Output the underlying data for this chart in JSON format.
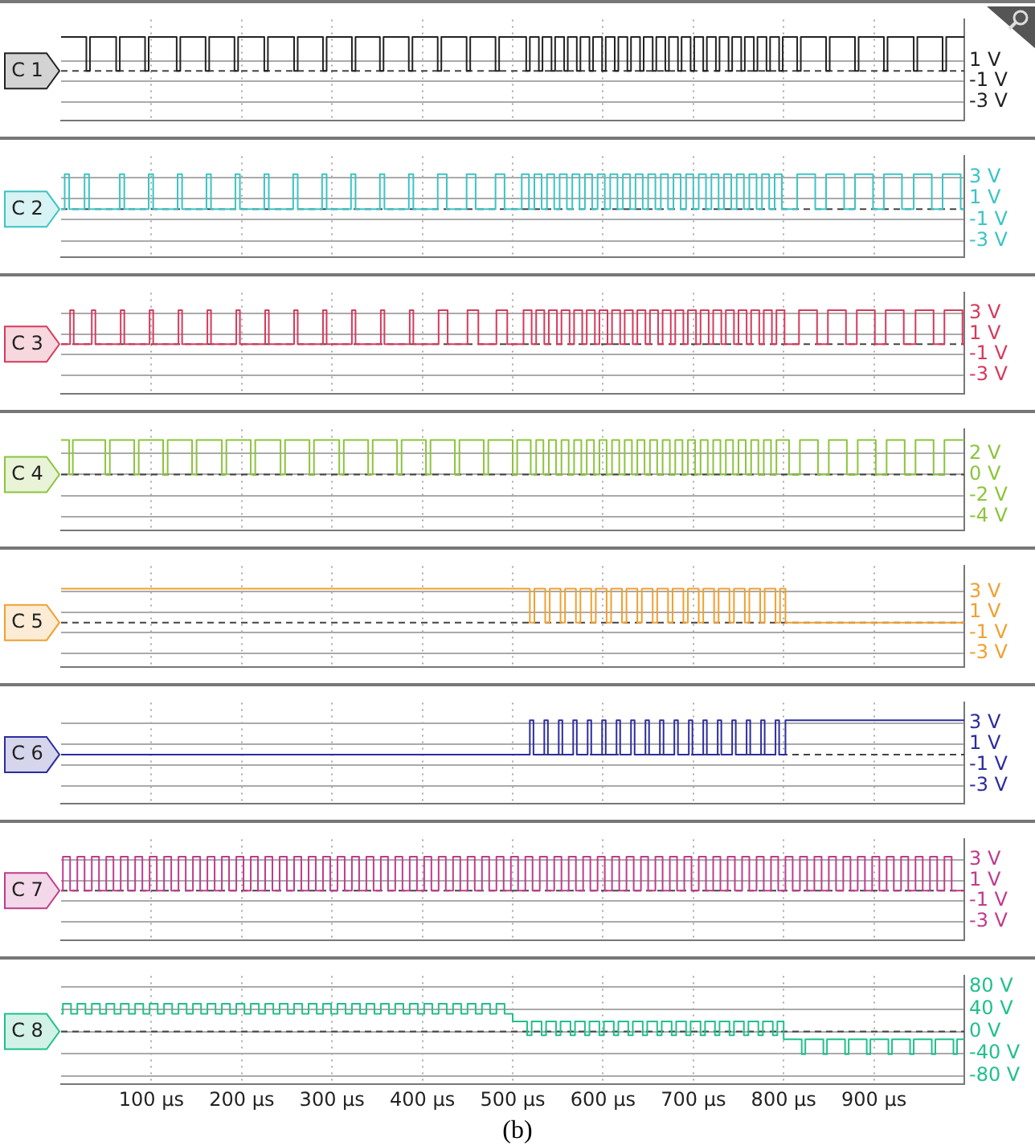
{
  "chart_data": [
    {
      "type": "step",
      "xlim": [
        0,
        1000
      ],
      "xticks": [
        100,
        200,
        300,
        400,
        500,
        600,
        700,
        800,
        900
      ],
      "ylim": [
        -4.8,
        5
      ],
      "yticks": [
        {
          "value": 1,
          "label": "1 V"
        },
        {
          "value": -1,
          "label": "-1 V"
        },
        {
          "value": -3,
          "label": "-3 V"
        }
      ],
      "tick_labels": "y",
      "grid": true,
      "legend": false,
      "marker": "none",
      "line_style": "solid",
      "ref_lines": [
        {
          "axis": "y",
          "value": 0,
          "line_style": "dashed"
        }
      ],
      "series": [
        {
          "name": "C 1",
          "color": "#222222",
          "x": [
            0,
            28,
            32,
            61,
            65,
            93,
            97,
            128,
            132,
            160,
            164,
            192,
            196,
            225,
            229,
            258,
            262,
            290,
            294,
            322,
            326,
            353,
            357,
            385,
            389,
            417,
            421,
            449,
            453,
            481,
            485,
            515,
            519,
            529,
            533,
            543,
            547,
            557,
            561,
            571,
            575,
            585,
            589,
            599,
            603,
            613,
            617,
            627,
            631,
            641,
            645,
            655,
            659,
            669,
            673,
            683,
            687,
            697,
            701,
            711,
            715,
            725,
            729,
            739,
            743,
            753,
            757,
            767,
            771,
            781,
            785,
            795,
            799,
            815,
            819,
            847,
            851,
            879,
            883,
            911,
            915,
            944,
            948,
            976,
            980,
            1000
          ],
          "values": [
            3.3,
            0,
            3.3,
            0,
            3.3,
            0,
            3.3,
            0,
            3.3,
            0,
            3.3,
            0,
            3.3,
            0,
            3.3,
            0,
            3.3,
            0,
            3.3,
            0,
            3.3,
            0,
            3.3,
            0,
            3.3,
            0,
            3.3,
            0,
            3.3,
            0,
            3.3,
            0,
            3.3,
            0,
            3.3,
            0,
            3.3,
            0,
            3.3,
            0,
            3.3,
            0,
            3.3,
            0,
            3.3,
            0,
            3.3,
            0,
            3.3,
            0,
            3.3,
            0,
            3.3,
            0,
            3.3,
            0,
            3.3,
            0,
            3.3,
            0,
            3.3,
            0,
            3.3,
            0,
            3.3,
            0,
            3.3,
            0,
            3.3,
            0,
            3.3,
            0,
            3.3,
            0,
            3.3,
            0,
            3.3,
            0,
            3.3,
            0,
            3.3,
            0,
            3.3,
            0,
            3.3,
            3.3
          ]
        }
      ]
    },
    {
      "type": "step",
      "xlim": [
        0,
        1000
      ],
      "xticks": [
        100,
        200,
        300,
        400,
        500,
        600,
        700,
        800,
        900
      ],
      "ylim": [
        -4.5,
        5
      ],
      "yticks": [
        {
          "value": 3,
          "label": "3 V"
        },
        {
          "value": 1,
          "label": "1 V"
        },
        {
          "value": -1,
          "label": "-1 V"
        },
        {
          "value": -3,
          "label": "-3 V"
        }
      ],
      "tick_labels": "y",
      "grid": true,
      "legend": false,
      "marker": "none",
      "line_style": "solid",
      "ref_lines": [
        {
          "axis": "y",
          "value": 0,
          "line_style": "dashed"
        }
      ],
      "series": [
        {
          "name": "C 2",
          "color": "#3cc4c4",
          "x": [
            0,
            4,
            9,
            26,
            31,
            65,
            70,
            97,
            102,
            129,
            134,
            161,
            166,
            193,
            198,
            225,
            230,
            257,
            262,
            289,
            294,
            321,
            326,
            353,
            358,
            385,
            390,
            417,
            427,
            449,
            459,
            481,
            491,
            510,
            518,
            524,
            532,
            538,
            546,
            552,
            560,
            566,
            574,
            580,
            588,
            594,
            602,
            608,
            616,
            622,
            630,
            636,
            644,
            650,
            658,
            664,
            672,
            678,
            686,
            692,
            700,
            706,
            714,
            720,
            728,
            734,
            742,
            748,
            756,
            762,
            770,
            776,
            784,
            790,
            798,
            815,
            835,
            847,
            867,
            879,
            899,
            911,
            931,
            944,
            964,
            976,
            996,
            1000
          ],
          "values": [
            0,
            3.3,
            0,
            3.3,
            0,
            3.3,
            0,
            3.3,
            0,
            3.3,
            0,
            3.3,
            0,
            3.3,
            0,
            3.3,
            0,
            3.3,
            0,
            3.3,
            0,
            3.3,
            0,
            3.3,
            0,
            3.3,
            0,
            3.3,
            0,
            3.3,
            0,
            3.3,
            0,
            3.3,
            0,
            3.3,
            0,
            3.3,
            0,
            3.3,
            0,
            3.3,
            0,
            3.3,
            0,
            3.3,
            0,
            3.3,
            0,
            3.3,
            0,
            3.3,
            0,
            3.3,
            0,
            3.3,
            0,
            3.3,
            0,
            3.3,
            0,
            3.3,
            0,
            3.3,
            0,
            3.3,
            0,
            3.3,
            0,
            3.3,
            0,
            3.3,
            0,
            3.3,
            0,
            3.3,
            0,
            3.3,
            0,
            3.3,
            0,
            3.3,
            0,
            3.3,
            0,
            3.3,
            0,
            0
          ]
        }
      ]
    },
    {
      "type": "step",
      "xlim": [
        0,
        1000
      ],
      "xticks": [
        100,
        200,
        300,
        400,
        500,
        600,
        700,
        800,
        900
      ],
      "ylim": [
        -4.8,
        5
      ],
      "yticks": [
        {
          "value": 3,
          "label": "3 V"
        },
        {
          "value": 1,
          "label": "1 V"
        },
        {
          "value": -1,
          "label": "-1 V"
        },
        {
          "value": -3,
          "label": "-3 V"
        }
      ],
      "tick_labels": "y",
      "grid": true,
      "legend": false,
      "marker": "none",
      "line_style": "solid",
      "ref_lines": [
        {
          "axis": "y",
          "value": 0,
          "line_style": "dashed"
        }
      ],
      "series": [
        {
          "name": "C 3",
          "color": "#d63a5c",
          "x": [
            0,
            10,
            14,
            34,
            38,
            66,
            70,
            98,
            102,
            130,
            134,
            162,
            166,
            194,
            198,
            226,
            230,
            258,
            262,
            290,
            294,
            322,
            326,
            354,
            358,
            386,
            390,
            418,
            428,
            450,
            462,
            482,
            494,
            512,
            521,
            526,
            535,
            540,
            549,
            554,
            563,
            568,
            577,
            582,
            591,
            596,
            605,
            610,
            619,
            624,
            633,
            638,
            647,
            652,
            661,
            666,
            675,
            680,
            689,
            694,
            703,
            708,
            717,
            722,
            731,
            736,
            745,
            750,
            759,
            764,
            773,
            778,
            787,
            792,
            801,
            817,
            837,
            849,
            869,
            881,
            901,
            913,
            933,
            946,
            966,
            978,
            998,
            1000
          ],
          "values": [
            0,
            3.3,
            0,
            3.3,
            0,
            3.3,
            0,
            3.3,
            0,
            3.3,
            0,
            3.3,
            0,
            3.3,
            0,
            3.3,
            0,
            3.3,
            0,
            3.3,
            0,
            3.3,
            0,
            3.3,
            0,
            3.3,
            0,
            3.3,
            0,
            3.3,
            0,
            3.3,
            0,
            3.3,
            0,
            3.3,
            0,
            3.3,
            0,
            3.3,
            0,
            3.3,
            0,
            3.3,
            0,
            3.3,
            0,
            3.3,
            0,
            3.3,
            0,
            3.3,
            0,
            3.3,
            0,
            3.3,
            0,
            3.3,
            0,
            3.3,
            0,
            3.3,
            0,
            3.3,
            0,
            3.3,
            0,
            3.3,
            0,
            3.3,
            0,
            3.3,
            0,
            3.3,
            0,
            3.3,
            0,
            3.3,
            0,
            3.3,
            0,
            3.3,
            0,
            3.3,
            0,
            3.3,
            0,
            0
          ]
        }
      ]
    },
    {
      "type": "step",
      "xlim": [
        0,
        1000
      ],
      "xticks": [
        100,
        200,
        300,
        400,
        500,
        600,
        700,
        800,
        900
      ],
      "ylim": [
        -5.3,
        4.3
      ],
      "yticks": [
        {
          "value": 2,
          "label": "2 V"
        },
        {
          "value": 0,
          "label": "0 V"
        },
        {
          "value": -2,
          "label": "-2 V"
        },
        {
          "value": -4,
          "label": "-4 V"
        }
      ],
      "tick_labels": "y",
      "grid": true,
      "legend": false,
      "marker": "none",
      "line_style": "solid",
      "ref_lines": [
        {
          "axis": "y",
          "value": 0,
          "line_style": "dashed"
        }
      ],
      "series": [
        {
          "name": "C 4",
          "color": "#8cc43c",
          "x": [
            0,
            9,
            13,
            49,
            54,
            81,
            86,
            113,
            118,
            145,
            150,
            178,
            183,
            210,
            215,
            243,
            248,
            275,
            280,
            308,
            313,
            340,
            345,
            372,
            377,
            404,
            409,
            436,
            441,
            468,
            473,
            500,
            505,
            520,
            526,
            534,
            540,
            548,
            554,
            562,
            568,
            576,
            582,
            590,
            596,
            604,
            610,
            618,
            624,
            632,
            638,
            646,
            652,
            660,
            666,
            674,
            680,
            688,
            694,
            702,
            708,
            716,
            722,
            730,
            736,
            744,
            750,
            758,
            764,
            772,
            778,
            786,
            792,
            806,
            818,
            838,
            850,
            870,
            882,
            902,
            914,
            934,
            946,
            966,
            978,
            1000
          ],
          "values": [
            3.3,
            0,
            3.3,
            0,
            3.3,
            0,
            3.3,
            0,
            3.3,
            0,
            3.3,
            0,
            3.3,
            0,
            3.3,
            0,
            3.3,
            0,
            3.3,
            0,
            3.3,
            0,
            3.3,
            0,
            3.3,
            0,
            3.3,
            0,
            3.3,
            0,
            3.3,
            0,
            3.3,
            0,
            3.3,
            0,
            3.3,
            0,
            3.3,
            0,
            3.3,
            0,
            3.3,
            0,
            3.3,
            0,
            3.3,
            0,
            3.3,
            0,
            3.3,
            0,
            3.3,
            0,
            3.3,
            0,
            3.3,
            0,
            3.3,
            0,
            3.3,
            0,
            3.3,
            0,
            3.3,
            0,
            3.3,
            0,
            3.3,
            0,
            3.3,
            0,
            3.3,
            0,
            3.3,
            0,
            3.3,
            0,
            3.3,
            0,
            3.3,
            0,
            3.3,
            0,
            3.3,
            3.3
          ]
        }
      ]
    },
    {
      "type": "step",
      "xlim": [
        0,
        1000
      ],
      "xticks": [
        100,
        200,
        300,
        400,
        500,
        600,
        700,
        800,
        900
      ],
      "ylim": [
        -4.3,
        5.5
      ],
      "yticks": [
        {
          "value": 3,
          "label": "3 V"
        },
        {
          "value": 1,
          "label": "1 V"
        },
        {
          "value": -1,
          "label": "-1 V"
        },
        {
          "value": -3,
          "label": "-3 V"
        }
      ],
      "tick_labels": "y",
      "grid": true,
      "legend": false,
      "marker": "none",
      "line_style": "solid",
      "ref_lines": [
        {
          "axis": "y",
          "value": 0,
          "line_style": "dashed"
        }
      ],
      "series": [
        {
          "name": "C 5",
          "color": "#f0a030",
          "x": [
            0,
            519,
            524,
            536,
            541,
            553,
            558,
            570,
            575,
            587,
            592,
            604,
            609,
            621,
            626,
            638,
            643,
            655,
            660,
            672,
            677,
            689,
            694,
            706,
            711,
            723,
            728,
            740,
            745,
            757,
            762,
            774,
            779,
            791,
            796,
            802,
            1000
          ],
          "values": [
            3.3,
            0,
            3.3,
            0,
            3.3,
            0,
            3.3,
            0,
            3.3,
            0,
            3.3,
            0,
            3.3,
            0,
            3.3,
            0,
            3.3,
            0,
            3.3,
            0,
            3.3,
            0,
            3.3,
            0,
            3.3,
            0,
            3.3,
            0,
            3.3,
            0,
            3.3,
            0,
            3.3,
            0,
            3.3,
            0,
            0
          ]
        }
      ]
    },
    {
      "type": "step",
      "xlim": [
        0,
        1000
      ],
      "xticks": [
        100,
        200,
        300,
        400,
        500,
        600,
        700,
        800,
        900
      ],
      "ylim": [
        -4.7,
        5
      ],
      "yticks": [
        {
          "value": 3,
          "label": "3 V"
        },
        {
          "value": 1,
          "label": "1 V"
        },
        {
          "value": -1,
          "label": "-1 V"
        },
        {
          "value": -3,
          "label": "-3 V"
        }
      ],
      "tick_labels": "y",
      "grid": true,
      "legend": false,
      "marker": "none",
      "line_style": "solid",
      "ref_lines": [
        {
          "axis": "y",
          "value": 0,
          "line_style": "dashed"
        }
      ],
      "series": [
        {
          "name": "C 6",
          "color": "#2c2ca0",
          "x": [
            0,
            519,
            523,
            535,
            539,
            551,
            555,
            567,
            571,
            583,
            587,
            599,
            603,
            615,
            619,
            631,
            635,
            647,
            651,
            663,
            667,
            679,
            683,
            695,
            699,
            711,
            715,
            727,
            731,
            743,
            747,
            759,
            763,
            775,
            779,
            791,
            795,
            802,
            1000
          ],
          "values": [
            0,
            3.3,
            0,
            3.3,
            0,
            3.3,
            0,
            3.3,
            0,
            3.3,
            0,
            3.3,
            0,
            3.3,
            0,
            3.3,
            0,
            3.3,
            0,
            3.3,
            0,
            3.3,
            0,
            3.3,
            0,
            3.3,
            0,
            3.3,
            0,
            3.3,
            0,
            3.3,
            0,
            3.3,
            0,
            3.3,
            0,
            3.3,
            3.3
          ]
        }
      ]
    },
    {
      "type": "step",
      "xlim": [
        0,
        1000
      ],
      "xticks": [
        100,
        200,
        300,
        400,
        500,
        600,
        700,
        800,
        900
      ],
      "ylim": [
        -4.8,
        5
      ],
      "yticks": [
        {
          "value": 3,
          "label": "3 V"
        },
        {
          "value": 1,
          "label": "1 V"
        },
        {
          "value": -1,
          "label": "-1 V"
        },
        {
          "value": -3,
          "label": "-3 V"
        }
      ],
      "tick_labels": "y",
      "grid": true,
      "legend": false,
      "marker": "none",
      "line_style": "solid",
      "ref_lines": [
        {
          "axis": "y",
          "value": 0,
          "line_style": "dashed"
        }
      ],
      "series": [
        {
          "name": "C 7",
          "color": "#c03c8c",
          "x": [
            0,
            2,
            10,
            18,
            26,
            34,
            42,
            50,
            58,
            66,
            74,
            82,
            90,
            98,
            106,
            114,
            122,
            130,
            138,
            146,
            154,
            162,
            170,
            178,
            186,
            194,
            202,
            210,
            218,
            226,
            234,
            242,
            250,
            258,
            266,
            274,
            282,
            290,
            298,
            306,
            314,
            322,
            330,
            338,
            346,
            354,
            362,
            370,
            378,
            386,
            394,
            402,
            410,
            418,
            426,
            434,
            442,
            450,
            458,
            466,
            474,
            482,
            490,
            498,
            506,
            514,
            522,
            530,
            538,
            546,
            554,
            562,
            570,
            578,
            586,
            594,
            602,
            610,
            618,
            626,
            634,
            642,
            650,
            658,
            666,
            674,
            682,
            690,
            698,
            706,
            714,
            722,
            730,
            738,
            746,
            754,
            762,
            770,
            778,
            786,
            794,
            802,
            810,
            818,
            826,
            834,
            842,
            850,
            858,
            866,
            874,
            882,
            890,
            898,
            906,
            914,
            922,
            930,
            938,
            946,
            954,
            962,
            970,
            978,
            986,
            1000
          ],
          "values": [
            0,
            3.3,
            0,
            3.3,
            0,
            3.3,
            0,
            3.3,
            0,
            3.3,
            0,
            3.3,
            0,
            3.3,
            0,
            3.3,
            0,
            3.3,
            0,
            3.3,
            0,
            3.3,
            0,
            3.3,
            0,
            3.3,
            0,
            3.3,
            0,
            3.3,
            0,
            3.3,
            0,
            3.3,
            0,
            3.3,
            0,
            3.3,
            0,
            3.3,
            0,
            3.3,
            0,
            3.3,
            0,
            3.3,
            0,
            3.3,
            0,
            3.3,
            0,
            3.3,
            0,
            3.3,
            0,
            3.3,
            0,
            3.3,
            0,
            3.3,
            0,
            3.3,
            0,
            3.3,
            0,
            3.3,
            0,
            3.3,
            0,
            3.3,
            0,
            3.3,
            0,
            3.3,
            0,
            3.3,
            0,
            3.3,
            0,
            3.3,
            0,
            3.3,
            0,
            3.3,
            0,
            3.3,
            0,
            3.3,
            0,
            3.3,
            0,
            3.3,
            0,
            3.3,
            0,
            3.3,
            0,
            3.3,
            0,
            3.3,
            0,
            3.3,
            0,
            3.3,
            0,
            3.3,
            0,
            3.3,
            0,
            3.3,
            0,
            3.3,
            0,
            3.3,
            0,
            3.3,
            0,
            3.3,
            0,
            3.3,
            0,
            3.3,
            0,
            3.3,
            0,
            0
          ]
        }
      ]
    },
    {
      "type": "step",
      "xlim": [
        0,
        1000
      ],
      "xticks": [
        {
          "value": 100,
          "label": "100 µs"
        },
        {
          "value": 200,
          "label": "200 µs"
        },
        {
          "value": 300,
          "label": "300 µs"
        },
        {
          "value": 400,
          "label": "400 µs"
        },
        {
          "value": 500,
          "label": "500 µs"
        },
        {
          "value": 600,
          "label": "600 µs"
        },
        {
          "value": 700,
          "label": "700 µs"
        },
        {
          "value": 800,
          "label": "800 µs"
        },
        {
          "value": 900,
          "label": "900 µs"
        }
      ],
      "ylim": [
        -95,
        100
      ],
      "yticks": [
        {
          "value": 80,
          "label": "80 V"
        },
        {
          "value": 40,
          "label": "40 V"
        },
        {
          "value": 0,
          "label": "0 V"
        },
        {
          "value": -40,
          "label": "-40 V"
        },
        {
          "value": -80,
          "label": "-80 V"
        }
      ],
      "grid": true,
      "legend": false,
      "marker": "none",
      "line_style": "solid",
      "ref_lines": [
        {
          "axis": "y",
          "value": 0,
          "line_style": "dashed"
        }
      ],
      "annotations": [
        "(b)"
      ],
      "series": [
        {
          "name": "C 8",
          "color": "#20c08c",
          "x": [
            0,
            2,
            11,
            18,
            27,
            34,
            43,
            50,
            59,
            66,
            75,
            82,
            91,
            98,
            107,
            114,
            123,
            130,
            139,
            146,
            155,
            162,
            171,
            178,
            187,
            194,
            203,
            210,
            219,
            226,
            235,
            242,
            251,
            258,
            267,
            274,
            283,
            290,
            299,
            306,
            315,
            322,
            331,
            338,
            347,
            354,
            363,
            370,
            379,
            386,
            395,
            402,
            411,
            418,
            427,
            434,
            443,
            450,
            459,
            466,
            475,
            482,
            491,
            500,
            516,
            521,
            532,
            537,
            548,
            553,
            564,
            569,
            580,
            585,
            596,
            601,
            612,
            617,
            628,
            633,
            644,
            649,
            660,
            665,
            676,
            681,
            692,
            697,
            708,
            713,
            724,
            729,
            740,
            745,
            756,
            761,
            772,
            777,
            788,
            793,
            800,
            820,
            824,
            844,
            848,
            868,
            872,
            892,
            896,
            916,
            920,
            940,
            944,
            964,
            968,
            988,
            992,
            1000
          ],
          "values": [
            32,
            50,
            32,
            50,
            32,
            50,
            32,
            50,
            32,
            50,
            32,
            50,
            32,
            50,
            32,
            50,
            32,
            50,
            32,
            50,
            32,
            50,
            32,
            50,
            32,
            50,
            32,
            50,
            32,
            50,
            32,
            50,
            32,
            50,
            32,
            50,
            32,
            50,
            32,
            50,
            32,
            50,
            32,
            50,
            32,
            50,
            32,
            50,
            32,
            50,
            32,
            50,
            32,
            50,
            32,
            50,
            32,
            50,
            32,
            50,
            32,
            50,
            32,
            18,
            -7,
            18,
            -7,
            18,
            -7,
            18,
            -7,
            18,
            -7,
            18,
            -7,
            18,
            -7,
            18,
            -7,
            18,
            -7,
            18,
            -7,
            18,
            -7,
            18,
            -7,
            18,
            -7,
            18,
            -7,
            18,
            -7,
            18,
            -7,
            18,
            -7,
            18,
            -7,
            18,
            -14,
            -41,
            -14,
            -41,
            -14,
            -41,
            -14,
            -41,
            -14,
            -41,
            -14,
            -41,
            -14,
            -41,
            -14,
            -41,
            -14,
            -14
          ]
        }
      ]
    }
  ]
}
